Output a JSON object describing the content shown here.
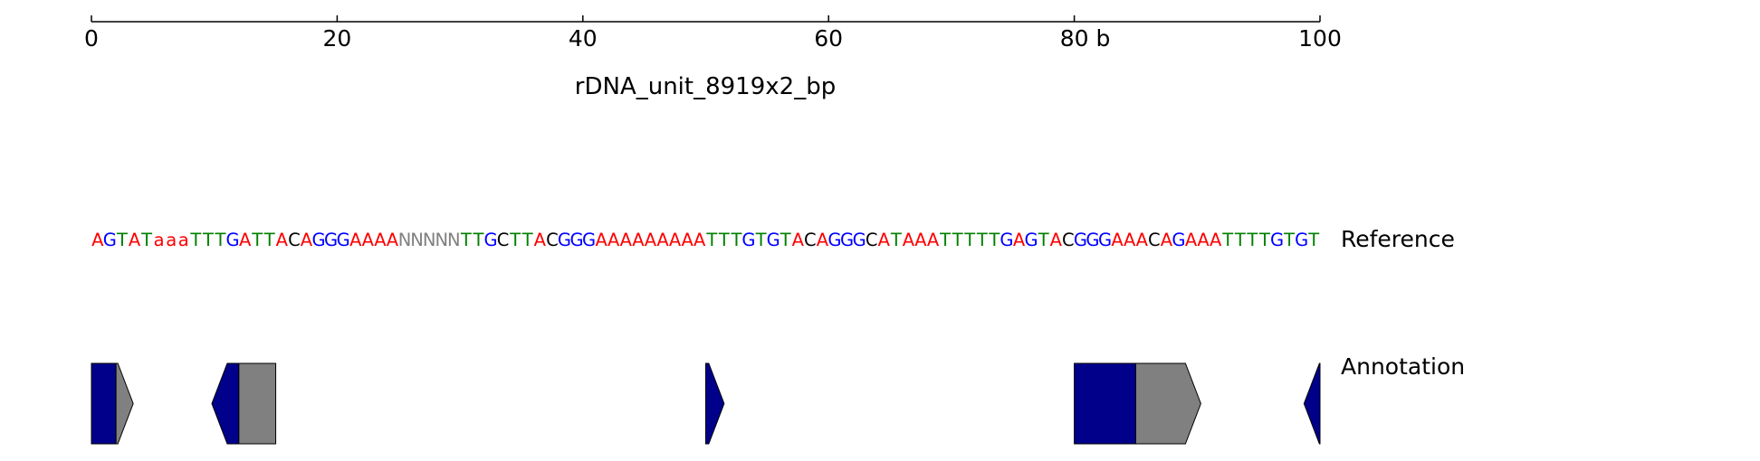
{
  "axis": {
    "min": 0,
    "max": 100,
    "ticks": [
      {
        "value": 0,
        "label": "0"
      },
      {
        "value": 20,
        "label": "20"
      },
      {
        "value": 40,
        "label": "40"
      },
      {
        "value": 60,
        "label": "60"
      },
      {
        "value": 80,
        "label": "80 b"
      },
      {
        "value": 100,
        "label": "100"
      }
    ]
  },
  "title": "rDNA_unit_8919x2_bp",
  "tracks": {
    "reference_label": "Reference",
    "annotation_label": "Annotation"
  },
  "sequence": "AGTATaaaTTTGATTACAGGGAAAANNNNNTTGCTTACGGGAAAAAAAAATTTGTGTACAGGGCATAAATTTTTGAGTACGGGAAACAGAAATTTTGTGT",
  "base_colors": {
    "A": "#ff0000",
    "a": "#ff0000",
    "T": "#008000",
    "t": "#008000",
    "G": "#0000ff",
    "g": "#0000ff",
    "C": "#000000",
    "c": "#000000",
    "N": "#808080",
    "n": "#808080"
  },
  "annotation_features": [
    {
      "start": 0,
      "end": 2,
      "strand": "none",
      "color": "#00008b"
    },
    {
      "start": 2,
      "end": 3.4,
      "strand": "+",
      "color": "#808080"
    },
    {
      "start": 9.8,
      "end": 12,
      "strand": "-",
      "color": "#00008b"
    },
    {
      "start": 12,
      "end": 15,
      "strand": "none",
      "color": "#808080"
    },
    {
      "start": 50,
      "end": 51.5,
      "strand": "+",
      "color": "#00008b"
    },
    {
      "start": 80,
      "end": 85,
      "strand": "none",
      "color": "#00008b"
    },
    {
      "start": 85,
      "end": 90.3,
      "strand": "+",
      "color": "#808080"
    },
    {
      "start": 98.7,
      "end": 100,
      "strand": "-",
      "color": "#00008b"
    }
  ]
}
